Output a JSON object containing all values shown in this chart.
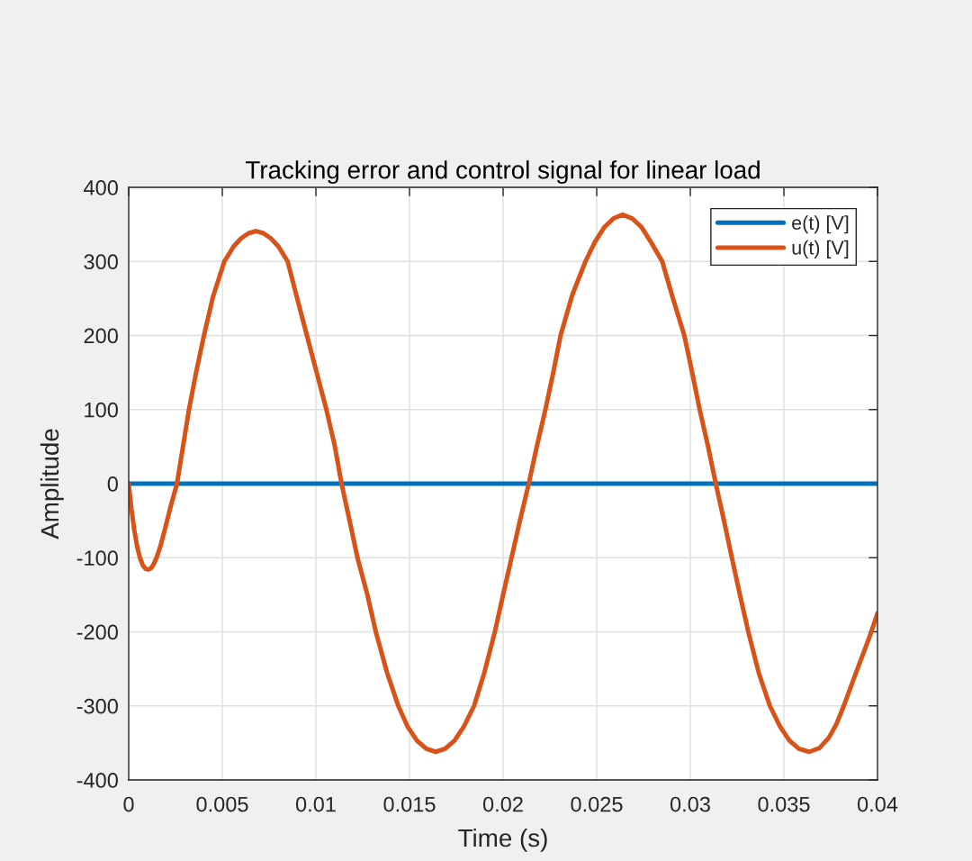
{
  "chart_data": {
    "type": "line",
    "title": "Tracking error and control signal for linear load",
    "xlabel": "Time (s)",
    "ylabel": "Amplitude",
    "series": [
      {
        "name": "e(t) [V]",
        "color": "#0072bd",
        "x": [
          0,
          0.04
        ],
        "values": [
          0,
          0
        ]
      },
      {
        "name": "u(t) [V]",
        "color": "#d95319",
        "x": [
          0,
          0.00015,
          0.0003,
          0.00045,
          0.0006,
          0.00075,
          0.0009,
          0.00105,
          0.0012,
          0.00135,
          0.0015,
          0.0017,
          0.00195,
          0.00225,
          0.00258,
          0.0029,
          0.00322,
          0.0036,
          0.00402,
          0.0045,
          0.00511,
          0.0056,
          0.006,
          0.0064,
          0.0068,
          0.0072,
          0.0076,
          0.008,
          0.00849,
          0.009,
          0.00952,
          0.01004,
          0.01056,
          0.011,
          0.01137,
          0.0118,
          0.01222,
          0.01275,
          0.0132,
          0.0138,
          0.0144,
          0.0149,
          0.0154,
          0.0159,
          0.0164,
          0.0169,
          0.0174,
          0.0179,
          0.01845,
          0.019,
          0.01956,
          0.02,
          0.02045,
          0.0209,
          0.02137,
          0.0218,
          0.02226,
          0.02268,
          0.02307,
          0.0237,
          0.0244,
          0.0249,
          0.0254,
          0.0259,
          0.02638,
          0.0269,
          0.0274,
          0.0279,
          0.0285,
          0.02905,
          0.02968,
          0.0301,
          0.0305,
          0.03095,
          0.03136,
          0.0318,
          0.03222,
          0.03265,
          0.0331,
          0.03365,
          0.03425,
          0.0348,
          0.0353,
          0.0358,
          0.03635,
          0.0369,
          0.0374,
          0.0378,
          0.0382,
          0.0389,
          0.0396,
          0.04
        ],
        "values": [
          0,
          -35,
          -63,
          -85,
          -100,
          -110,
          -115,
          -116,
          -114,
          -108,
          -99,
          -84,
          -60,
          -30,
          0,
          50,
          100,
          150,
          200,
          252,
          300,
          320,
          331,
          338,
          341,
          338,
          331,
          320,
          300,
          250,
          200,
          150,
          100,
          52,
          0,
          -50,
          -100,
          -150,
          -200,
          -255,
          -300,
          -328,
          -347,
          -358,
          -362,
          -358,
          -347,
          -328,
          -300,
          -255,
          -200,
          -150,
          -100,
          -50,
          0,
          50,
          100,
          150,
          200,
          255,
          300,
          326,
          346,
          358,
          363,
          358,
          346,
          326,
          300,
          252,
          200,
          150,
          100,
          50,
          0,
          -50,
          -100,
          -150,
          -200,
          -255,
          -300,
          -328,
          -347,
          -358,
          -362,
          -357,
          -343,
          -325,
          -300,
          -252,
          -205,
          -175
        ]
      }
    ],
    "xlim": [
      0,
      0.04
    ],
    "ylim": [
      -400,
      400
    ],
    "xticks": [
      0,
      0.005,
      0.01,
      0.015,
      0.02,
      0.025,
      0.03,
      0.035,
      0.04
    ],
    "yticks": [
      -400,
      -300,
      -200,
      -100,
      0,
      100,
      200,
      300,
      400
    ],
    "grid": true,
    "legend": "top right"
  }
}
